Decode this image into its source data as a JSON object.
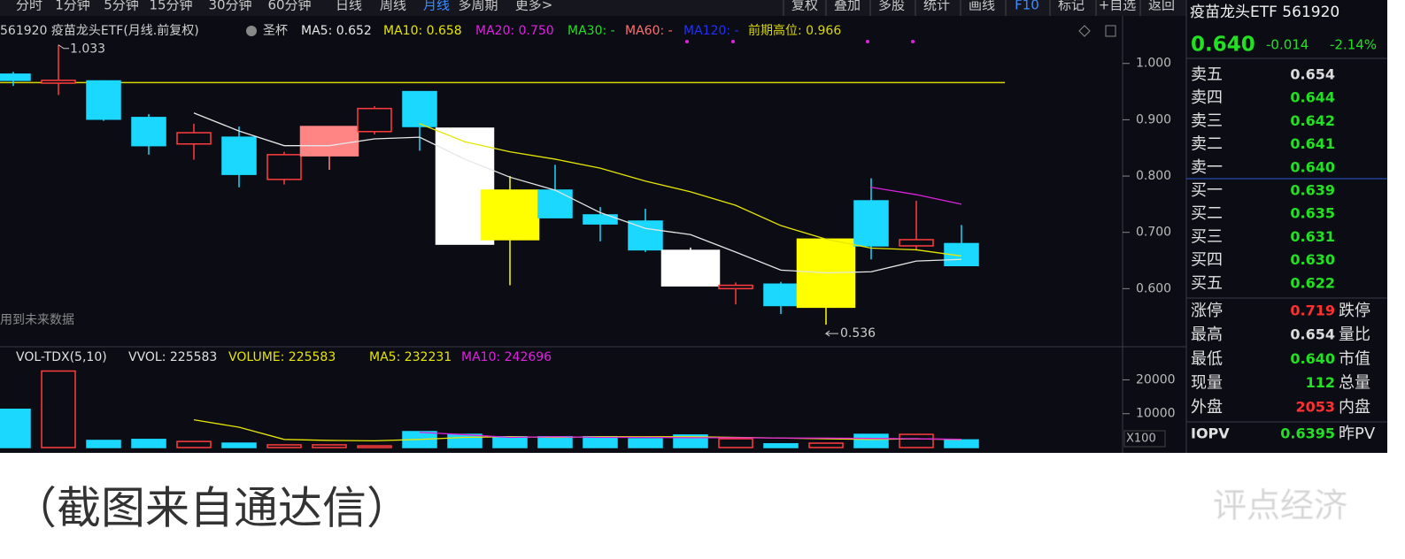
{
  "toolbar": {
    "periods": [
      "分时",
      "1分钟",
      "5分钟",
      "15分钟",
      "30分钟",
      "60分钟",
      "日线",
      "周线",
      "月线",
      "多周期",
      "更多>"
    ],
    "active": "月线",
    "tools": [
      "复权",
      "叠加",
      "多股",
      "统计",
      "画线",
      "F10",
      "标记",
      "+自选",
      "返回"
    ]
  },
  "chart_data": [
    {
      "type": "candlestick",
      "title": "561920 疫苗龙头ETF(月线.前复权)",
      "indicator": "圣杯",
      "open": [
        0.981,
        0.965,
        0.969,
        0.904,
        0.857,
        0.869,
        0.794,
        0.836,
        0.879,
        0.95,
        0.885,
        0.775,
        0.775,
        0.731,
        0.72,
        0.668,
        0.6,
        0.608,
        0.567,
        0.756,
        0.676,
        0.68
      ],
      "high": [
        0.985,
        1.033,
        0.97,
        0.91,
        0.893,
        0.888,
        0.843,
        0.888,
        0.924,
        0.95,
        0.885,
        0.8,
        0.82,
        0.745,
        0.742,
        0.673,
        0.611,
        0.612,
        0.688,
        0.796,
        0.756,
        0.713
      ],
      "low": [
        0.96,
        0.944,
        0.898,
        0.838,
        0.829,
        0.78,
        0.785,
        0.811,
        0.874,
        0.845,
        0.679,
        0.606,
        0.726,
        0.684,
        0.665,
        0.605,
        0.572,
        0.555,
        0.536,
        0.652,
        0.668,
        0.64
      ],
      "close": [
        0.97,
        0.97,
        0.901,
        0.854,
        0.877,
        0.803,
        0.838,
        0.888,
        0.92,
        0.888,
        0.679,
        0.687,
        0.726,
        0.715,
        0.669,
        0.605,
        0.606,
        0.57,
        0.688,
        0.676,
        0.687,
        0.641
      ],
      "fills": [
        null,
        null,
        null,
        null,
        null,
        null,
        null,
        "#ff8484",
        null,
        null,
        "#ffffff",
        "#ffff00",
        null,
        null,
        null,
        "#ffffff",
        null,
        null,
        "#ffff00",
        null,
        null,
        null
      ],
      "up_color": "#ff3d3d",
      "down_color": "#1ad8ff",
      "series": [
        {
          "legend": "MA5: 0.652",
          "color": "#e6e6e6",
          "values": [
            null,
            null,
            null,
            null,
            0.912,
            0.88,
            0.854,
            0.854,
            0.866,
            0.869,
            0.83,
            0.798,
            0.775,
            0.735,
            0.707,
            0.696,
            0.665,
            0.633,
            0.628,
            0.63,
            0.649,
            0.652
          ]
        },
        {
          "legend": "MA10: 0.658",
          "color": "#e6e600",
          "values": [
            null,
            null,
            null,
            null,
            null,
            null,
            null,
            null,
            null,
            0.893,
            0.861,
            0.843,
            0.83,
            0.814,
            0.791,
            0.772,
            0.748,
            0.712,
            0.688,
            0.672,
            0.669,
            0.658
          ]
        },
        {
          "legend": "MA20: 0.750",
          "color": "#e020e0",
          "values": [
            null,
            null,
            null,
            null,
            null,
            null,
            null,
            null,
            null,
            null,
            null,
            null,
            null,
            null,
            null,
            null,
            null,
            null,
            null,
            0.78,
            0.767,
            0.75
          ]
        }
      ],
      "legend_extra": [
        {
          "label": "MA30: -",
          "color": "#20e020"
        },
        {
          "label": "MA60: -",
          "color": "#ff7070"
        },
        {
          "label": "MA120: -",
          "color": "#2030ff"
        }
      ],
      "reference_line": {
        "label": "前期高位: 0.966",
        "value": 0.966,
        "color": "#d8d800"
      },
      "annotations": [
        1.033,
        0.536
      ],
      "note": "用到未来数据",
      "ylim": [
        0.5,
        1.075
      ],
      "yticks": [
        {
          "value": 1.0,
          "label": "1.000"
        },
        {
          "value": 0.9,
          "label": "0.900"
        },
        {
          "value": 0.8,
          "label": "0.800"
        },
        {
          "value": 0.7,
          "label": "0.700"
        },
        {
          "value": 0.6,
          "label": "0.600"
        }
      ]
    },
    {
      "type": "volume",
      "legend": [
        {
          "label": "VOL-TDX(5,10)",
          "color": "#e0e0e0"
        },
        {
          "label": "VVOL: 225583",
          "color": "#e0e0e0"
        },
        {
          "label": "VOLUME: 225583",
          "color": "#e6e600"
        }
      ],
      "values": [
        11300,
        22600,
        2100,
        2400,
        1800,
        1300,
        800,
        800,
        500,
        4700,
        3900,
        3200,
        3200,
        3200,
        2600,
        3700,
        2600,
        1100,
        1300,
        3900,
        3900,
        2256
      ],
      "series": [
        {
          "legend": "MA5: 232231",
          "color": "#e6e600",
          "values": [
            null,
            null,
            null,
            null,
            8200,
            6000,
            2400,
            2100,
            2000,
            2400,
            3000,
            3200,
            3000,
            3200,
            3200,
            3200,
            3000,
            2800,
            2600,
            2400,
            2600,
            2322
          ]
        },
        {
          "legend": "MA10: 242696",
          "color": "#e020e0",
          "values": [
            null,
            null,
            null,
            null,
            null,
            null,
            null,
            null,
            null,
            4500,
            3800,
            3000,
            3200,
            3000,
            3000,
            2900,
            2900,
            2800,
            2800,
            2700,
            2600,
            2427
          ]
        }
      ],
      "ylim": [
        0,
        29000
      ],
      "yticks": [
        10000,
        20000
      ],
      "unit": "X100"
    }
  ],
  "quote": {
    "name": "疫苗龙头ETF 561920",
    "price": "0.640",
    "change": "-0.014",
    "percent": "-2.14%",
    "color": "#22e022",
    "book": [
      {
        "label": "卖五",
        "price": "0.654",
        "color": "#dddddd"
      },
      {
        "label": "卖四",
        "price": "0.644",
        "color": "#22e022"
      },
      {
        "label": "卖三",
        "price": "0.642",
        "color": "#22e022"
      },
      {
        "label": "卖二",
        "price": "0.641",
        "color": "#22e022"
      },
      {
        "label": "卖一",
        "price": "0.640",
        "color": "#22e022"
      },
      {
        "label": "买一",
        "price": "0.639",
        "color": "#22e022"
      },
      {
        "label": "买二",
        "price": "0.635",
        "color": "#22e022"
      },
      {
        "label": "买三",
        "price": "0.631",
        "color": "#22e022"
      },
      {
        "label": "买四",
        "price": "0.630",
        "color": "#22e022"
      },
      {
        "label": "买五",
        "price": "0.622",
        "color": "#22e022"
      }
    ],
    "stats": [
      {
        "label": "涨停",
        "value": "0.719",
        "color": "#ff3030",
        "label2": "跌停"
      },
      {
        "label": "最高",
        "value": "0.654",
        "color": "#dddddd",
        "label2": "量比"
      },
      {
        "label": "最低",
        "value": "0.640",
        "color": "#22e022",
        "label2": "市值"
      },
      {
        "label": "现量",
        "value": "112",
        "color": "#22e022",
        "label2": "总量"
      },
      {
        "label": "外盘",
        "value": "2053",
        "color": "#ff3030",
        "label2": "内盘"
      },
      {
        "label": "IOPV",
        "value": "0.6395",
        "color": "#22e022",
        "label2": "昨PV"
      }
    ]
  },
  "caption": "（截图来自通达信）",
  "watermark": "评点经济"
}
